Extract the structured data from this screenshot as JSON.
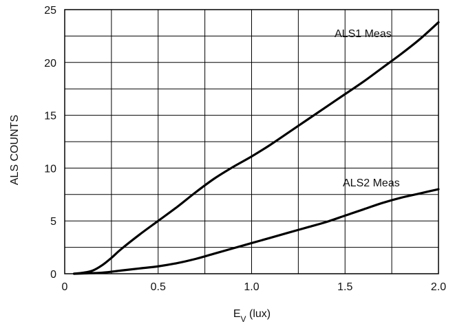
{
  "chart_data": {
    "type": "line",
    "title": "",
    "xlabel": "E",
    "xlabel_subscript": "V",
    "xlabel_unit": " (lux)",
    "ylabel": "ALS COUNTS",
    "xlim": [
      0,
      2.0
    ],
    "ylim": [
      0,
      25
    ],
    "grid": true,
    "x_ticks": [
      0,
      0.5,
      1.0,
      1.5,
      2.0
    ],
    "x_tick_labels": [
      "0",
      "0.5",
      "1.0",
      "1.5",
      "2.0"
    ],
    "x_minor_ticks": [
      0.25,
      0.75,
      1.25,
      1.75
    ],
    "y_ticks": [
      0,
      5,
      10,
      15,
      20,
      25
    ],
    "y_tick_labels": [
      "0",
      "5",
      "10",
      "15",
      "20",
      "25"
    ],
    "y_minor_ticks": [
      2.5,
      7.5,
      12.5,
      17.5,
      22.5
    ],
    "series": [
      {
        "name": "ALS1 Meas",
        "color": "#000000",
        "x": [
          0.05,
          0.1,
          0.15,
          0.2,
          0.25,
          0.3,
          0.4,
          0.5,
          0.6,
          0.7,
          0.8,
          0.9,
          1.0,
          1.1,
          1.2,
          1.3,
          1.4,
          1.5,
          1.6,
          1.7,
          1.8,
          1.9,
          2.0
        ],
        "y": [
          0.0,
          0.1,
          0.3,
          0.8,
          1.5,
          2.3,
          3.7,
          5.0,
          6.3,
          7.7,
          9.0,
          10.1,
          11.1,
          12.2,
          13.4,
          14.6,
          15.8,
          17.0,
          18.2,
          19.5,
          20.8,
          22.2,
          23.8
        ]
      },
      {
        "name": "ALS2 Meas",
        "color": "#000000",
        "x": [
          0.05,
          0.2,
          0.3,
          0.4,
          0.5,
          0.6,
          0.7,
          0.8,
          0.9,
          1.0,
          1.1,
          1.2,
          1.3,
          1.4,
          1.5,
          1.6,
          1.7,
          1.8,
          1.9,
          2.0
        ],
        "y": [
          0.0,
          0.1,
          0.3,
          0.5,
          0.7,
          1.0,
          1.4,
          1.9,
          2.4,
          2.9,
          3.4,
          3.9,
          4.4,
          4.9,
          5.5,
          6.1,
          6.7,
          7.2,
          7.6,
          8.0
        ]
      }
    ],
    "annotations": [
      "ALS1 Meas",
      "ALS2 Meas"
    ]
  }
}
